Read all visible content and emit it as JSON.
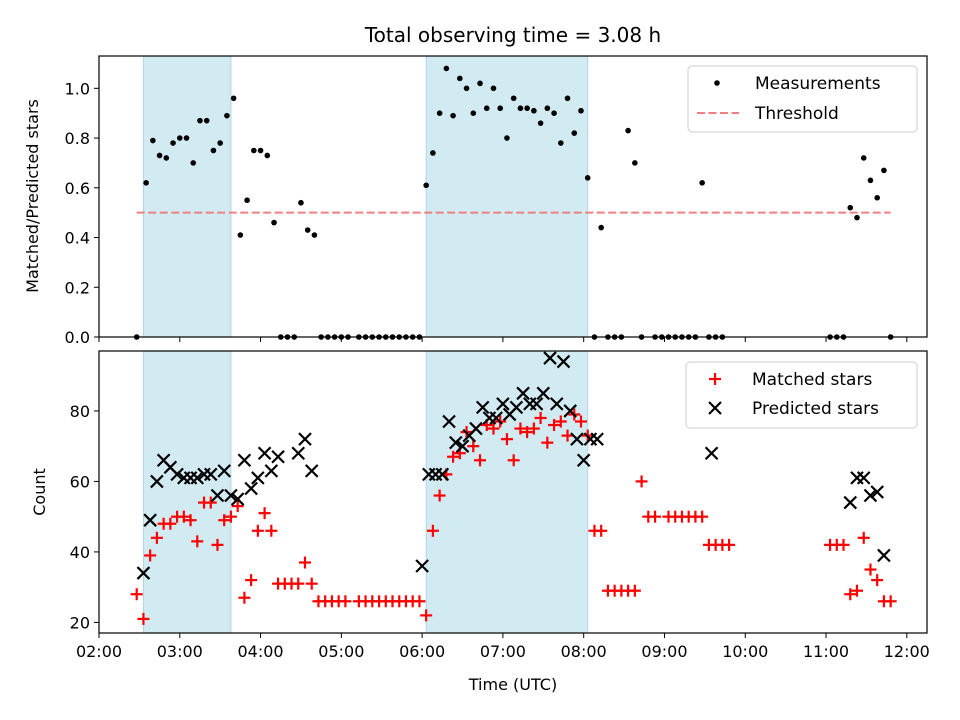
{
  "chart_data": [
    {
      "type": "scatter",
      "title": "Total observing time = 3.08 h",
      "ylabel": "Matched/Predicted stars",
      "xlim": [
        "02:00",
        "12:15"
      ],
      "ylim": [
        0,
        1.13
      ],
      "x_ticks": [
        "02:00",
        "03:00",
        "04:00",
        "05:00",
        "06:00",
        "07:00",
        "08:00",
        "09:00",
        "10:00",
        "11:00",
        "12:00"
      ],
      "y_ticks": [
        "0.0",
        "0.2",
        "0.4",
        "0.6",
        "0.8",
        "1.0"
      ],
      "legend_position": "top-right",
      "shaded_intervals": [
        [
          "02:33",
          "03:38"
        ],
        [
          "06:03",
          "08:03"
        ]
      ],
      "shade_color": "#add8e6",
      "series": [
        {
          "name": "Measurements",
          "marker": "dot",
          "color": "#000000",
          "points": [
            [
              "02:28",
              0.0
            ],
            [
              "02:35",
              0.62
            ],
            [
              "02:40",
              0.79
            ],
            [
              "02:45",
              0.73
            ],
            [
              "02:50",
              0.72
            ],
            [
              "02:55",
              0.78
            ],
            [
              "03:00",
              0.8
            ],
            [
              "03:05",
              0.8
            ],
            [
              "03:10",
              0.7
            ],
            [
              "03:15",
              0.87
            ],
            [
              "03:20",
              0.87
            ],
            [
              "03:25",
              0.75
            ],
            [
              "03:30",
              0.78
            ],
            [
              "03:35",
              0.89
            ],
            [
              "03:40",
              0.96
            ],
            [
              "03:45",
              0.41
            ],
            [
              "03:50",
              0.55
            ],
            [
              "03:55",
              0.75
            ],
            [
              "04:00",
              0.75
            ],
            [
              "04:05",
              0.73
            ],
            [
              "04:10",
              0.46
            ],
            [
              "04:15",
              0.0
            ],
            [
              "04:20",
              0.0
            ],
            [
              "04:25",
              0.0
            ],
            [
              "04:30",
              0.54
            ],
            [
              "04:35",
              0.43
            ],
            [
              "04:40",
              0.41
            ],
            [
              "04:45",
              0.0
            ],
            [
              "04:50",
              0.0
            ],
            [
              "04:55",
              0.0
            ],
            [
              "05:00",
              0.0
            ],
            [
              "05:05",
              0.0
            ],
            [
              "05:13",
              0.0
            ],
            [
              "05:18",
              0.0
            ],
            [
              "05:23",
              0.0
            ],
            [
              "05:28",
              0.0
            ],
            [
              "05:33",
              0.0
            ],
            [
              "05:38",
              0.0
            ],
            [
              "05:43",
              0.0
            ],
            [
              "05:48",
              0.0
            ],
            [
              "05:53",
              0.0
            ],
            [
              "05:58",
              0.0
            ],
            [
              "06:03",
              0.61
            ],
            [
              "06:08",
              0.74
            ],
            [
              "06:13",
              0.9
            ],
            [
              "06:18",
              1.08
            ],
            [
              "06:23",
              0.89
            ],
            [
              "06:28",
              1.04
            ],
            [
              "06:33",
              1.0
            ],
            [
              "06:38",
              0.9
            ],
            [
              "06:43",
              1.02
            ],
            [
              "06:48",
              0.92
            ],
            [
              "06:53",
              1.0
            ],
            [
              "06:58",
              0.92
            ],
            [
              "07:03",
              0.8
            ],
            [
              "07:08",
              0.96
            ],
            [
              "07:13",
              0.92
            ],
            [
              "07:18",
              0.92
            ],
            [
              "07:23",
              0.91
            ],
            [
              "07:28",
              0.86
            ],
            [
              "07:33",
              0.92
            ],
            [
              "07:38",
              0.9
            ],
            [
              "07:43",
              0.78
            ],
            [
              "07:48",
              0.96
            ],
            [
              "07:53",
              0.82
            ],
            [
              "07:58",
              0.91
            ],
            [
              "08:03",
              0.64
            ],
            [
              "08:08",
              0.0
            ],
            [
              "08:13",
              0.44
            ],
            [
              "08:18",
              0.0
            ],
            [
              "08:23",
              0.0
            ],
            [
              "08:28",
              0.0
            ],
            [
              "08:33",
              0.83
            ],
            [
              "08:38",
              0.7
            ],
            [
              "08:43",
              0.0
            ],
            [
              "08:53",
              0.0
            ],
            [
              "08:58",
              0.0
            ],
            [
              "09:03",
              0.0
            ],
            [
              "09:08",
              0.0
            ],
            [
              "09:13",
              0.0
            ],
            [
              "09:18",
              0.0
            ],
            [
              "09:23",
              0.0
            ],
            [
              "09:28",
              0.62
            ],
            [
              "09:33",
              0.0
            ],
            [
              "09:38",
              0.0
            ],
            [
              "09:43",
              0.0
            ],
            [
              "11:03",
              0.0
            ],
            [
              "11:08",
              0.0
            ],
            [
              "11:13",
              0.0
            ],
            [
              "11:18",
              0.52
            ],
            [
              "11:23",
              0.48
            ],
            [
              "11:28",
              0.72
            ],
            [
              "11:33",
              0.63
            ],
            [
              "11:38",
              0.56
            ],
            [
              "11:43",
              0.67
            ],
            [
              "11:48",
              0.0
            ]
          ]
        },
        {
          "name": "Threshold",
          "marker": "dashed-line",
          "color": "#f08080",
          "points": [
            [
              "02:28",
              0.5
            ],
            [
              "11:48",
              0.5
            ]
          ]
        }
      ]
    },
    {
      "type": "scatter",
      "xlabel": "Time (UTC)",
      "ylabel": "Count",
      "xlim": [
        "02:00",
        "12:15"
      ],
      "ylim": [
        17,
        97
      ],
      "x_ticks": [
        "02:00",
        "03:00",
        "04:00",
        "05:00",
        "06:00",
        "07:00",
        "08:00",
        "09:00",
        "10:00",
        "11:00",
        "12:00"
      ],
      "y_ticks": [
        "20",
        "40",
        "60",
        "80"
      ],
      "legend_position": "top-right",
      "shaded_intervals": [
        [
          "02:33",
          "03:38"
        ],
        [
          "06:03",
          "08:03"
        ]
      ],
      "shade_color": "#add8e6",
      "series": [
        {
          "name": "Matched stars",
          "marker": "plus",
          "color": "#ff0000",
          "points": [
            [
              "02:28",
              28
            ],
            [
              "02:33",
              21
            ],
            [
              "02:38",
              39
            ],
            [
              "02:43",
              44
            ],
            [
              "02:48",
              48
            ],
            [
              "02:53",
              48
            ],
            [
              "02:58",
              50
            ],
            [
              "03:03",
              50
            ],
            [
              "03:08",
              49
            ],
            [
              "03:13",
              43
            ],
            [
              "03:18",
              54
            ],
            [
              "03:23",
              54
            ],
            [
              "03:28",
              42
            ],
            [
              "03:33",
              49
            ],
            [
              "03:38",
              50
            ],
            [
              "03:43",
              53
            ],
            [
              "03:48",
              27
            ],
            [
              "03:53",
              32
            ],
            [
              "03:58",
              46
            ],
            [
              "04:03",
              51
            ],
            [
              "04:08",
              46
            ],
            [
              "04:13",
              31
            ],
            [
              "04:18",
              31
            ],
            [
              "04:23",
              31
            ],
            [
              "04:28",
              31
            ],
            [
              "04:33",
              37
            ],
            [
              "04:38",
              31
            ],
            [
              "04:43",
              26
            ],
            [
              "04:48",
              26
            ],
            [
              "04:53",
              26
            ],
            [
              "04:58",
              26
            ],
            [
              "05:03",
              26
            ],
            [
              "05:13",
              26
            ],
            [
              "05:18",
              26
            ],
            [
              "05:23",
              26
            ],
            [
              "05:28",
              26
            ],
            [
              "05:33",
              26
            ],
            [
              "05:38",
              26
            ],
            [
              "05:43",
              26
            ],
            [
              "05:48",
              26
            ],
            [
              "05:53",
              26
            ],
            [
              "05:58",
              26
            ],
            [
              "06:03",
              22
            ],
            [
              "06:08",
              46
            ],
            [
              "06:13",
              56
            ],
            [
              "06:18",
              62
            ],
            [
              "06:23",
              67
            ],
            [
              "06:28",
              68
            ],
            [
              "06:33",
              74
            ],
            [
              "06:38",
              70
            ],
            [
              "06:43",
              66
            ],
            [
              "06:48",
              76
            ],
            [
              "06:53",
              75
            ],
            [
              "06:58",
              77
            ],
            [
              "07:03",
              72
            ],
            [
              "07:08",
              66
            ],
            [
              "07:13",
              75
            ],
            [
              "07:18",
              74
            ],
            [
              "07:23",
              75
            ],
            [
              "07:28",
              78
            ],
            [
              "07:33",
              71
            ],
            [
              "07:38",
              76
            ],
            [
              "07:43",
              77
            ],
            [
              "07:48",
              73
            ],
            [
              "07:53",
              79
            ],
            [
              "07:58",
              77
            ],
            [
              "08:03",
              73
            ],
            [
              "08:08",
              46
            ],
            [
              "08:13",
              46
            ],
            [
              "08:18",
              29
            ],
            [
              "08:23",
              29
            ],
            [
              "08:28",
              29
            ],
            [
              "08:33",
              29
            ],
            [
              "08:38",
              29
            ],
            [
              "08:43",
              60
            ],
            [
              "08:48",
              50
            ],
            [
              "08:53",
              50
            ],
            [
              "09:03",
              50
            ],
            [
              "09:08",
              50
            ],
            [
              "09:13",
              50
            ],
            [
              "09:18",
              50
            ],
            [
              "09:23",
              50
            ],
            [
              "09:28",
              50
            ],
            [
              "09:33",
              42
            ],
            [
              "09:38",
              42
            ],
            [
              "09:43",
              42
            ],
            [
              "09:48",
              42
            ],
            [
              "11:03",
              42
            ],
            [
              "11:08",
              42
            ],
            [
              "11:13",
              42
            ],
            [
              "11:18",
              28
            ],
            [
              "11:23",
              29
            ],
            [
              "11:28",
              44
            ],
            [
              "11:33",
              35
            ],
            [
              "11:38",
              32
            ],
            [
              "11:43",
              26
            ],
            [
              "11:48",
              26
            ]
          ]
        },
        {
          "name": "Predicted stars",
          "marker": "x",
          "color": "#000000",
          "points": [
            [
              "02:33",
              34
            ],
            [
              "02:38",
              49
            ],
            [
              "02:43",
              60
            ],
            [
              "02:48",
              66
            ],
            [
              "02:53",
              64
            ],
            [
              "02:58",
              62
            ],
            [
              "03:03",
              61
            ],
            [
              "03:08",
              61
            ],
            [
              "03:13",
              61
            ],
            [
              "03:18",
              62
            ],
            [
              "03:23",
              62
            ],
            [
              "03:28",
              56
            ],
            [
              "03:33",
              63
            ],
            [
              "03:38",
              56
            ],
            [
              "03:43",
              55
            ],
            [
              "03:48",
              66
            ],
            [
              "03:53",
              58
            ],
            [
              "03:58",
              61
            ],
            [
              "04:03",
              68
            ],
            [
              "04:08",
              63
            ],
            [
              "04:13",
              67
            ],
            [
              "04:28",
              68
            ],
            [
              "04:33",
              72
            ],
            [
              "04:38",
              63
            ],
            [
              "06:00",
              36
            ],
            [
              "06:05",
              62
            ],
            [
              "06:10",
              62
            ],
            [
              "06:15",
              62
            ],
            [
              "06:20",
              77
            ],
            [
              "06:25",
              71
            ],
            [
              "06:30",
              70
            ],
            [
              "06:35",
              73
            ],
            [
              "06:40",
              75
            ],
            [
              "06:45",
              81
            ],
            [
              "06:50",
              78
            ],
            [
              "06:55",
              78
            ],
            [
              "07:00",
              82
            ],
            [
              "07:05",
              79
            ],
            [
              "07:10",
              81
            ],
            [
              "07:15",
              85
            ],
            [
              "07:20",
              82
            ],
            [
              "07:25",
              82
            ],
            [
              "07:30",
              85
            ],
            [
              "07:35",
              95
            ],
            [
              "07:40",
              82
            ],
            [
              "07:45",
              94
            ],
            [
              "07:50",
              80
            ],
            [
              "07:55",
              72
            ],
            [
              "08:00",
              66
            ],
            [
              "08:05",
              72
            ],
            [
              "08:10",
              72
            ],
            [
              "09:35",
              68
            ],
            [
              "11:18",
              54
            ],
            [
              "11:23",
              61
            ],
            [
              "11:28",
              61
            ],
            [
              "11:33",
              56
            ],
            [
              "11:38",
              57
            ],
            [
              "11:43",
              39
            ]
          ]
        }
      ]
    }
  ]
}
